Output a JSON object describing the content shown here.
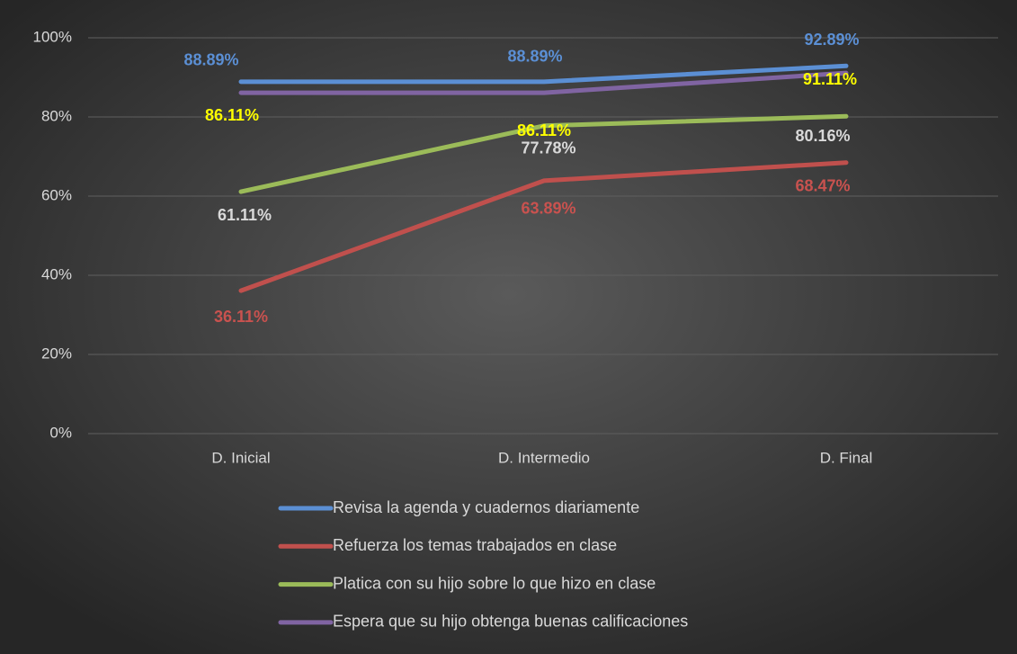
{
  "chart_data": {
    "type": "line",
    "categories": [
      "D. Inicial",
      "D. Intermedio",
      "D. Final"
    ],
    "series": [
      {
        "name": "Revisa la agenda y cuadernos diariamente",
        "color": "#5b8fd4",
        "label_color": "#5b8fd4",
        "values": [
          88.89,
          88.89,
          92.89
        ],
        "value_labels": [
          "88.89%",
          "88.89%",
          "92.89%"
        ]
      },
      {
        "name": "Refuerza los temas trabajados en clase",
        "color": "#c0504d",
        "label_color": "#c9524f",
        "values": [
          36.11,
          63.89,
          68.47
        ],
        "value_labels": [
          "36.11%",
          "63.89%",
          "68.47%"
        ]
      },
      {
        "name": "Platica con su hijo sobre lo que hizo en clase",
        "color": "#9bbb59",
        "label_color": "#d9d9d9",
        "values": [
          61.11,
          77.78,
          80.16
        ],
        "value_labels": [
          "61.11%",
          "77.78%",
          "80.16%"
        ]
      },
      {
        "name": "Espera que su hijo obtenga buenas calificaciones",
        "color": "#8064a2",
        "label_color": "#ffff00",
        "values": [
          86.11,
          86.11,
          91.11
        ],
        "value_labels": [
          "86.11%",
          "86.11%",
          "91.11%"
        ]
      }
    ],
    "ylim": [
      0,
      100
    ],
    "yticks": [
      {
        "value": 0,
        "label": "0%"
      },
      {
        "value": 20,
        "label": "20%"
      },
      {
        "value": 40,
        "label": "40%"
      },
      {
        "value": 60,
        "label": "60%"
      },
      {
        "value": 80,
        "label": "80%"
      },
      {
        "value": 100,
        "label": "100%"
      }
    ],
    "grid": true,
    "legend": "bottom"
  }
}
